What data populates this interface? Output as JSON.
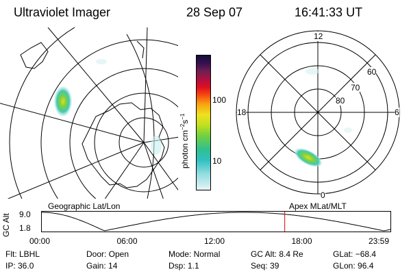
{
  "header": {
    "instrument": "Ultraviolet Imager",
    "date": "28 Sep 07",
    "time": "16:41:33 UT"
  },
  "colorbar": {
    "unit_label": "photon cm",
    "unit_exp1": "−2",
    "unit_mid": "s",
    "unit_exp2": "−1",
    "tick_100": "100",
    "tick_10": "10"
  },
  "polar_plot": {
    "label_top": "12",
    "label_left": "18",
    "label_right": "6",
    "label_bottom": "0",
    "ring_60": "60",
    "ring_70": "70",
    "ring_80": "80"
  },
  "map_labels": {
    "left": "Geographic Lat/Lon",
    "right": "Apex MLat/MLT"
  },
  "altitude_plot": {
    "axis_label": "GC Alt",
    "ymax": "9.0",
    "ymin": "1.8",
    "x_ticks": [
      "00:00",
      "06:00",
      "12:00",
      "18:00",
      "23:59"
    ],
    "current_time_hours": 16.69,
    "curve_color": "#000000",
    "marker_color": "#dd0000"
  },
  "status": {
    "flt": "Flt: LBHL",
    "door": "Door: Open",
    "mode": "Mode: Normal",
    "gc_alt": "GC Alt: 8.4 Re",
    "glat": "GLat: −68.4",
    "ip": "IP: 36.0",
    "gain": "Gain: 14",
    "dsp": "Dsp:    1.1",
    "seq": "Seq: 39",
    "glon": "GLon:  96.4"
  }
}
